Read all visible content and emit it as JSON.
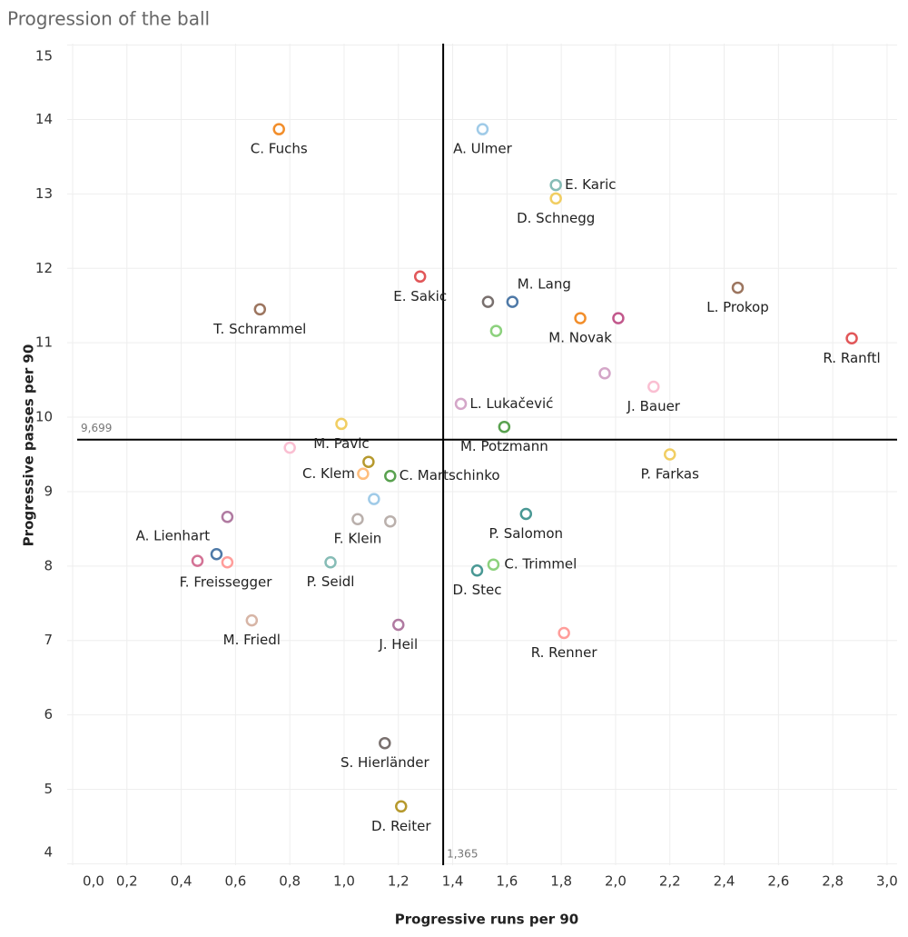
{
  "chart_data": {
    "type": "scatter",
    "title": "Progression of the ball",
    "x_label": "Progressive runs per 90",
    "y_label": "Progressive passes per 90",
    "labels": [
      "C. Fuchs",
      "A. Ulmer",
      "E. Karic",
      "D. Schnegg",
      "E. Sakic",
      "M. Lang",
      null,
      "T. Schrammel",
      "L. Prokop",
      "M. Novak",
      null,
      null,
      "R. Ranftl",
      null,
      "J. Bauer",
      "L. Lukačević",
      "M. Potzmann",
      "M. Pavic",
      null,
      "C. Klem",
      null,
      "C. Martschinko",
      "P. Farkas",
      null,
      "A. Lienhart",
      "F. Klein",
      null,
      "P. Salomon",
      "F. Freissegger",
      null,
      null,
      "P. Seidl",
      "C. Trimmel",
      "D. Stec",
      "M. Friedl",
      "J. Heil",
      "R. Renner",
      "S. Hierländer",
      "D. Reiter"
    ],
    "x": [
      0.76,
      1.51,
      1.78,
      1.78,
      1.28,
      1.62,
      1.53,
      0.69,
      2.45,
      1.87,
      2.01,
      1.56,
      2.87,
      1.96,
      2.14,
      1.43,
      1.59,
      0.99,
      0.8,
      1.07,
      1.09,
      1.17,
      2.2,
      1.11,
      0.57,
      1.05,
      1.17,
      1.67,
      0.46,
      0.53,
      0.57,
      0.95,
      1.55,
      1.49,
      0.66,
      1.2,
      1.81,
      1.15,
      1.21
    ],
    "y": [
      13.87,
      13.87,
      13.12,
      12.94,
      11.89,
      11.55,
      11.55,
      11.45,
      11.74,
      11.33,
      11.33,
      11.16,
      11.06,
      10.59,
      10.41,
      10.18,
      9.87,
      9.91,
      9.59,
      9.24,
      9.4,
      9.21,
      9.5,
      8.9,
      8.66,
      8.63,
      8.6,
      8.7,
      8.07,
      8.16,
      8.05,
      8.05,
      8.02,
      7.94,
      7.27,
      7.21,
      7.1,
      5.62,
      4.77
    ],
    "colors": [
      "#f28e2b",
      "#a0cbe8",
      "#86bcb6",
      "#f1ce63",
      "#e15759",
      "#4e79a7",
      "#79706e",
      "#9c755f",
      "#9c755f",
      "#f28e2b",
      "#c2588c",
      "#8cd17d",
      "#e15759",
      "#d4a6c8",
      "#fabfd2",
      "#d4a6c8",
      "#59a14f",
      "#f1ce63",
      "#fabfd2",
      "#ffbe7d",
      "#b6992d",
      "#59a14f",
      "#f1ce63",
      "#a0cbe8",
      "#b07aa1",
      "#bab0ac",
      "#bab0ac",
      "#499894",
      "#d37295",
      "#4e79a7",
      "#ff9d9a",
      "#86bcb6",
      "#8cd17d",
      "#499894",
      "#d7b5a6",
      "#b07aa1",
      "#ff9d9a",
      "#79706e",
      "#b6992d"
    ],
    "xlim": [
      -0.02,
      3.037
    ],
    "ylim": [
      3.98,
      15.02
    ],
    "xticks": [
      {
        "value": 0,
        "label": "0,0"
      },
      {
        "value": 0.2,
        "label": "0,2"
      },
      {
        "value": 0.4,
        "label": "0,4"
      },
      {
        "value": 0.6,
        "label": "0,6"
      },
      {
        "value": 0.8,
        "label": "0,8"
      },
      {
        "value": 1,
        "label": "1,0"
      },
      {
        "value": 1.2,
        "label": "1,2"
      },
      {
        "value": 1.4,
        "label": "1,4"
      },
      {
        "value": 1.6,
        "label": "1,6"
      },
      {
        "value": 1.8,
        "label": "1,8"
      },
      {
        "value": 2,
        "label": "2,0"
      },
      {
        "value": 2.2,
        "label": "2,2"
      },
      {
        "value": 2.4,
        "label": "2,4"
      },
      {
        "value": 2.6,
        "label": "2,6"
      },
      {
        "value": 2.8,
        "label": "2,8"
      },
      {
        "value": 3,
        "label": "3,0"
      }
    ],
    "yticks": [
      4,
      5,
      6,
      7,
      8,
      9,
      10,
      11,
      12,
      13,
      14,
      15
    ],
    "x_reference": {
      "value": 1.365,
      "label": "1,365"
    },
    "y_reference": {
      "value": 9.699,
      "label": "9,699"
    },
    "grid": true
  }
}
